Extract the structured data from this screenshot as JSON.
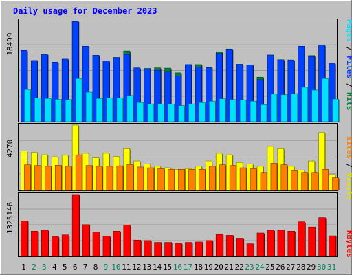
{
  "chart_data": [
    {
      "type": "bar",
      "title": "Daily usage for December 2023",
      "panel": "pages-files-hits",
      "categories": [
        "1",
        "2",
        "3",
        "4",
        "5",
        "6",
        "7",
        "8",
        "9",
        "10",
        "11",
        "12",
        "13",
        "14",
        "15",
        "16",
        "17",
        "18",
        "19",
        "20",
        "21",
        "22",
        "23",
        "24",
        "25",
        "26",
        "27",
        "28",
        "29",
        "30",
        "31"
      ],
      "ymax_label": "18499",
      "ylim": [
        0,
        18499
      ],
      "series": [
        {
          "name": "Hits",
          "color": "#008040",
          "values": [
            13050,
            11200,
            12300,
            10900,
            11450,
            18350,
            13800,
            12150,
            11100,
            11750,
            12950,
            9850,
            9750,
            9850,
            9800,
            8950,
            10450,
            10450,
            10000,
            12800,
            13300,
            10500,
            10400,
            8150,
            12200,
            11350,
            11300,
            13800,
            12100,
            14000,
            10700
          ]
        },
        {
          "name": "Files",
          "color": "#0040ff",
          "values": [
            13050,
            11200,
            12300,
            10900,
            11450,
            18350,
            13800,
            12150,
            11100,
            11750,
            12300,
            9850,
            9600,
            9400,
            9200,
            8400,
            10450,
            10000,
            9900,
            12500,
            13300,
            10500,
            10400,
            7700,
            12200,
            11350,
            11300,
            13800,
            11900,
            14000,
            10700
          ]
        },
        {
          "name": "Pages",
          "color": "#00e0ff",
          "values": [
            5900,
            4350,
            4250,
            4100,
            4050,
            7900,
            5400,
            4250,
            4350,
            4350,
            4800,
            3500,
            3250,
            3200,
            3200,
            2950,
            3250,
            3500,
            3750,
            4200,
            4050,
            4000,
            3750,
            3100,
            5050,
            4950,
            5150,
            6300,
            5800,
            7900,
            4150
          ]
        }
      ]
    },
    {
      "type": "bar",
      "panel": "visits-sites",
      "categories": [
        "1",
        "2",
        "3",
        "4",
        "5",
        "6",
        "7",
        "8",
        "9",
        "10",
        "11",
        "12",
        "13",
        "14",
        "15",
        "16",
        "17",
        "18",
        "19",
        "20",
        "21",
        "22",
        "23",
        "24",
        "25",
        "26",
        "27",
        "28",
        "29",
        "30",
        "31"
      ],
      "ymax_label": "4270",
      "ylim": [
        0,
        4270
      ],
      "series": [
        {
          "name": "Visits",
          "color": "#ffff00",
          "values": [
            2580,
            2480,
            2330,
            2200,
            2300,
            4270,
            2430,
            2130,
            2430,
            2230,
            2730,
            1930,
            1730,
            1580,
            1480,
            1380,
            1430,
            1580,
            1930,
            2430,
            2330,
            1830,
            1730,
            1580,
            2880,
            2730,
            1580,
            1330,
            1930,
            3780,
            1030
          ]
        },
        {
          "name": "Sites",
          "color": "#ff8000",
          "values": [
            1680,
            1630,
            1580,
            1650,
            1580,
            2330,
            1630,
            1580,
            1580,
            1610,
            1700,
            1530,
            1480,
            1430,
            1380,
            1380,
            1380,
            1380,
            1580,
            1680,
            1630,
            1480,
            1430,
            1180,
            1780,
            1680,
            1280,
            1180,
            1180,
            1380,
            830
          ]
        }
      ]
    },
    {
      "type": "bar",
      "panel": "kbytes",
      "categories": [
        "1",
        "2",
        "3",
        "4",
        "5",
        "6",
        "7",
        "8",
        "9",
        "10",
        "11",
        "12",
        "13",
        "14",
        "15",
        "16",
        "17",
        "18",
        "19",
        "20",
        "21",
        "22",
        "23",
        "24",
        "25",
        "26",
        "27",
        "28",
        "29",
        "30",
        "31"
      ],
      "ymax_label": "1325146",
      "ylim": [
        0,
        1325146
      ],
      "series": [
        {
          "name": "KBytes",
          "color": "#ff0000",
          "values": [
            760000,
            540000,
            560000,
            420000,
            460000,
            1325146,
            680000,
            520000,
            430000,
            540000,
            670000,
            350000,
            340000,
            300000,
            300000,
            280000,
            300000,
            310000,
            340000,
            470000,
            450000,
            390000,
            270000,
            500000,
            560000,
            560000,
            540000,
            740000,
            630000,
            830000,
            440000
          ]
        }
      ]
    }
  ],
  "title": "Daily usage for December 2023",
  "legend": {
    "pages": "Pages",
    "files": "Files",
    "hits": "Hits",
    "sites": "Sites",
    "visits": "Visits",
    "kbytes": "KBytes",
    "sep": " / "
  },
  "colors": {
    "background": "#c0c0c0",
    "plot_bg": "#c0c0c0",
    "grid": "#9a9a9a",
    "title": "#0000ff",
    "weekend_day": "#00805c",
    "weekday_day": "#000000"
  },
  "weekend_days": [
    2,
    3,
    9,
    10,
    16,
    17,
    23,
    24,
    30,
    31
  ]
}
